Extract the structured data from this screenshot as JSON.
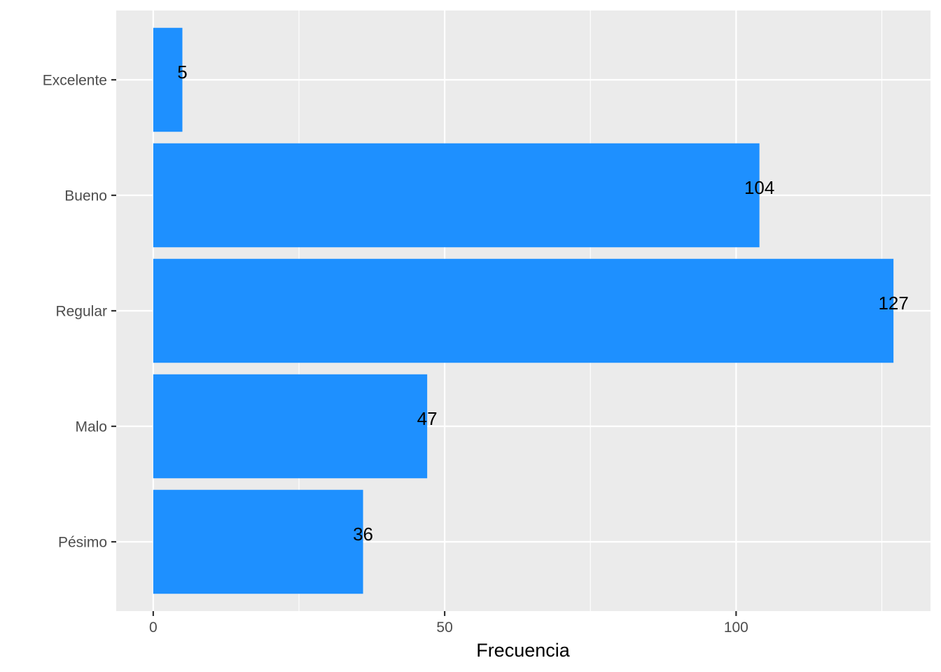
{
  "chart_data": {
    "type": "bar",
    "orientation": "horizontal",
    "categories": [
      "Excelente",
      "Bueno",
      "Regular",
      "Malo",
      "Pésimo"
    ],
    "values": [
      5,
      104,
      127,
      47,
      36
    ],
    "data_labels": [
      "5",
      "104",
      "127",
      "47",
      "36"
    ],
    "title": "",
    "xlabel": "Frecuencia",
    "ylabel": "",
    "xlim": [
      -6.35,
      133.35
    ],
    "x_ticks": [
      0,
      50,
      100
    ],
    "x_tick_labels": [
      "0",
      "50",
      "100"
    ],
    "x_minor_ticks": [
      25,
      75,
      125
    ],
    "grid": true,
    "legend": "none",
    "colors": {
      "bar": "#1E90FF",
      "panel": "#EBEBEB",
      "grid": "#FFFFFF",
      "tick_text": "#4D4D4D",
      "axis_title": "#000000",
      "label_text": "#000000"
    }
  }
}
